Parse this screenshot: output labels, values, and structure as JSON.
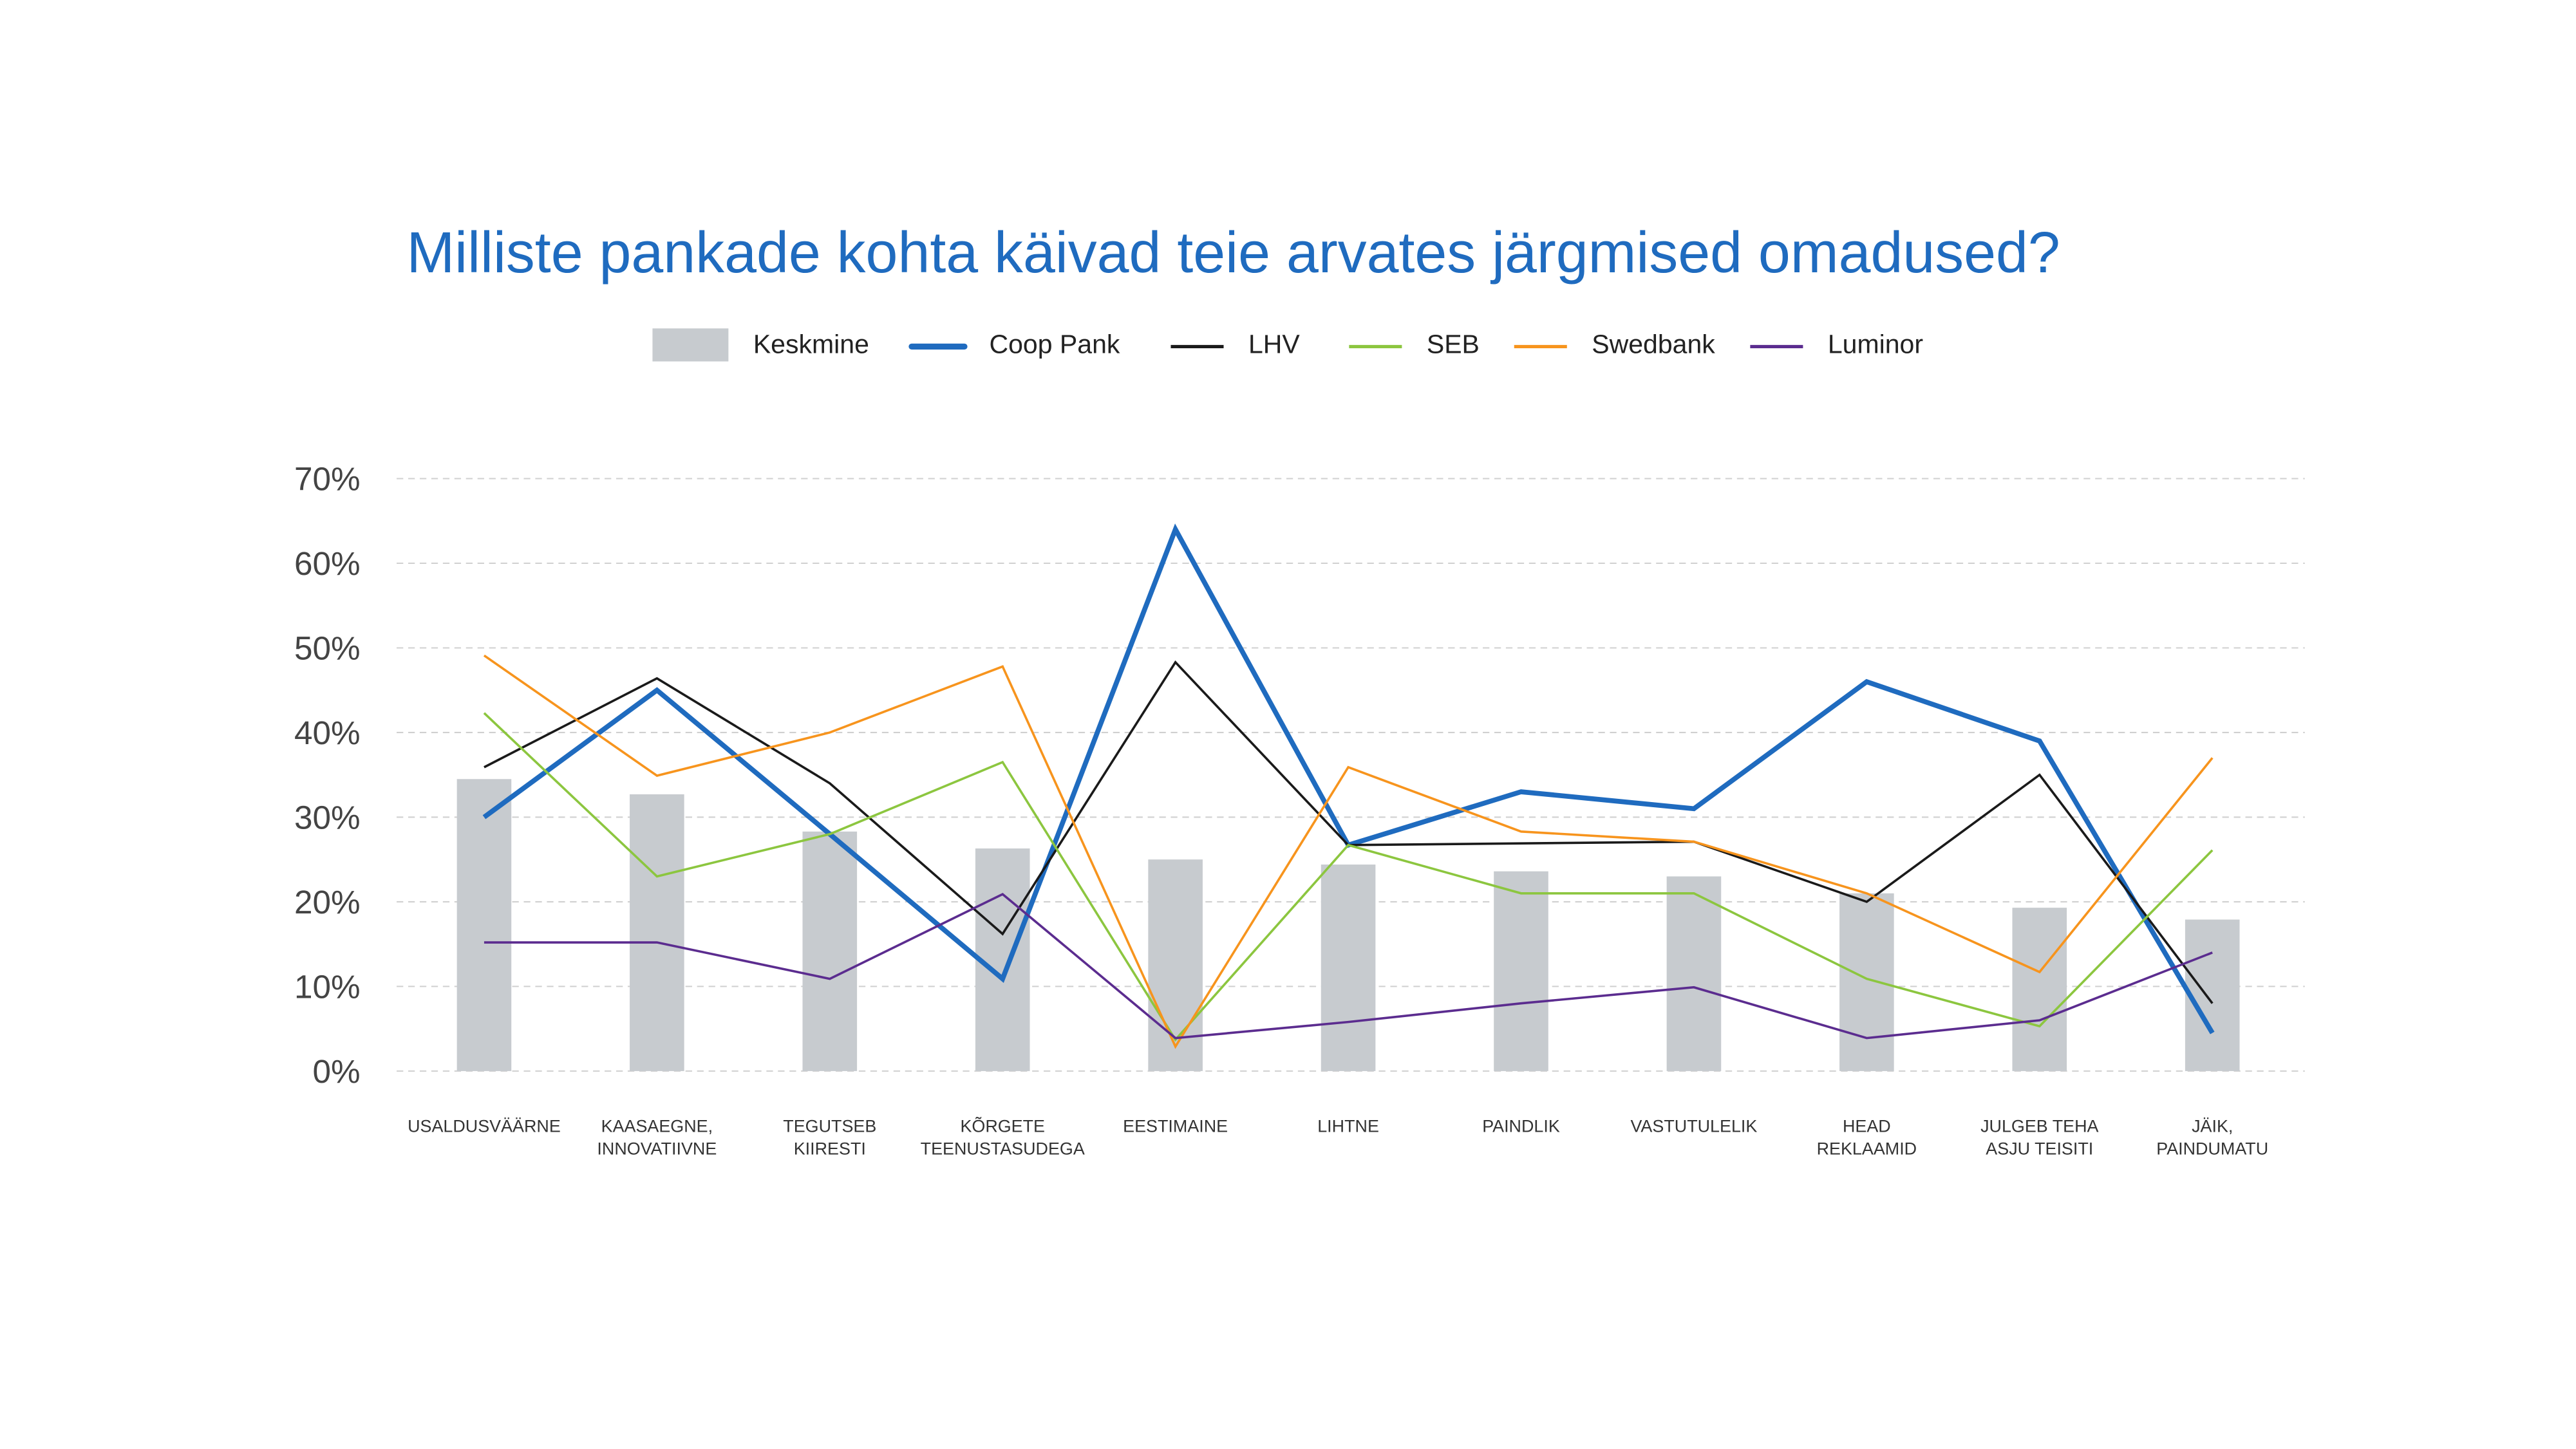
{
  "chart_data": {
    "type": "bar",
    "title": "Milliste pankade kohta käivad teie arvates järgmised omadused?",
    "xlabel": "",
    "ylabel": "",
    "ylim": [
      0,
      70
    ],
    "yticks": [
      "0%",
      "10%",
      "20%",
      "30%",
      "40%",
      "50%",
      "60%",
      "70%"
    ],
    "grid": true,
    "legend_placement": "top-center",
    "categories": [
      [
        "USALDUSVÄÄRNE"
      ],
      [
        "KAASAEGNE,",
        "INNOVATIIVNE"
      ],
      [
        "TEGUTSEB",
        "KIIRESTI"
      ],
      [
        "KÕRGETE",
        "TEENUSTASUDEGA"
      ],
      [
        "EESTIMAINE"
      ],
      [
        "LIHTNE"
      ],
      [
        "PAINDLIK"
      ],
      [
        "VASTUTULELIK"
      ],
      [
        "HEAD",
        "REKLAAMID"
      ],
      [
        "JULGEB TEHA",
        "ASJU TEISITI"
      ],
      [
        "JÄIK,",
        "PAINDUMATU"
      ]
    ],
    "series": [
      {
        "name": "Keskmine",
        "kind": "bar",
        "color": "#c7cbcf",
        "values": [
          34.5,
          32.7,
          28.3,
          26.3,
          25.0,
          24.4,
          23.6,
          23.0,
          21.0,
          19.3,
          17.9
        ]
      },
      {
        "name": "Coop Pank",
        "kind": "line",
        "color": "#1f6bbf",
        "width": 3,
        "values": [
          30.0,
          45.0,
          28.0,
          10.9,
          64.0,
          26.7,
          33.0,
          31.0,
          46.0,
          39.0,
          4.5
        ]
      },
      {
        "name": "LHV",
        "kind": "line",
        "color": "#1a1a1a",
        "width": 1.4,
        "values": [
          35.9,
          46.4,
          34.0,
          16.2,
          48.3,
          26.7,
          26.9,
          27.1,
          20.0,
          35.0,
          8.0
        ]
      },
      {
        "name": "SEB",
        "kind": "line",
        "color": "#8cc63f",
        "width": 1.4,
        "values": [
          42.3,
          23.0,
          28.0,
          36.5,
          3.7,
          26.7,
          21.0,
          21.0,
          10.9,
          5.3,
          26.1
        ]
      },
      {
        "name": "Swedbank",
        "kind": "line",
        "color": "#f7941d",
        "width": 1.4,
        "values": [
          49.1,
          34.9,
          40.0,
          47.8,
          2.9,
          35.9,
          28.3,
          27.1,
          21.0,
          11.7,
          37.0
        ]
      },
      {
        "name": "Luminor",
        "kind": "line",
        "color": "#5b2c8f",
        "width": 1.4,
        "values": [
          15.2,
          15.2,
          10.9,
          20.9,
          3.9,
          5.8,
          8.0,
          9.9,
          3.9,
          6.0,
          14.0
        ]
      }
    ]
  }
}
